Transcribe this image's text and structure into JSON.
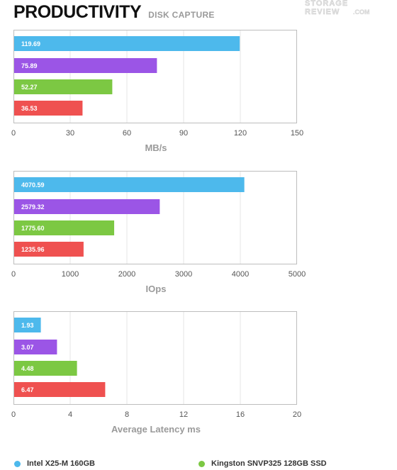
{
  "header": {
    "title": "PRODUCTIVITY",
    "subtitle": "DISK CAPTURE"
  },
  "watermark": {
    "line1": "STORAGE",
    "line2": "REVIEW",
    "suffix": ".COM"
  },
  "colors": {
    "intel": "#4db9ec",
    "purple": "#9b55e6",
    "kingston": "#7cc843",
    "red": "#ef5150",
    "grid": "#e6e6e6",
    "frame": "#bdbdbd",
    "axis_text": "#555555",
    "label_text": "#9a9a9a"
  },
  "legend": [
    {
      "label": "Intel X25-M 160GB",
      "color": "#4db9ec"
    },
    {
      "label": "Kingston SNVP325 128GB SSD",
      "color": "#7cc843"
    }
  ],
  "chart_data": [
    {
      "type": "bar",
      "orientation": "horizontal",
      "xlabel": "MB/s",
      "xlim": [
        0,
        150
      ],
      "ticks": [
        0,
        30,
        60,
        90,
        120,
        150
      ],
      "values": [
        119.69,
        75.89,
        52.27,
        36.53
      ],
      "value_labels": [
        "119.69",
        "75.89",
        "52.27",
        "36.53"
      ],
      "bar_colors": [
        "#4db9ec",
        "#9b55e6",
        "#7cc843",
        "#ef5150"
      ],
      "grid": true
    },
    {
      "type": "bar",
      "orientation": "horizontal",
      "xlabel": "IOps",
      "xlim": [
        0,
        5000
      ],
      "ticks": [
        0,
        1000,
        2000,
        3000,
        4000,
        5000
      ],
      "values": [
        4070.59,
        2579.32,
        1775.6,
        1235.96
      ],
      "value_labels": [
        "4070.59",
        "2579.32",
        "1775.60",
        "1235.96"
      ],
      "bar_colors": [
        "#4db9ec",
        "#9b55e6",
        "#7cc843",
        "#ef5150"
      ],
      "grid": true
    },
    {
      "type": "bar",
      "orientation": "horizontal",
      "xlabel": "Average Latency ms",
      "xlim": [
        0,
        20
      ],
      "ticks": [
        0,
        4,
        8,
        12,
        16,
        20
      ],
      "values": [
        1.93,
        3.07,
        4.48,
        6.47
      ],
      "value_labels": [
        "1.93",
        "3.07",
        "4.48",
        "6.47"
      ],
      "bar_colors": [
        "#4db9ec",
        "#9b55e6",
        "#7cc843",
        "#ef5150"
      ],
      "grid": true
    }
  ]
}
